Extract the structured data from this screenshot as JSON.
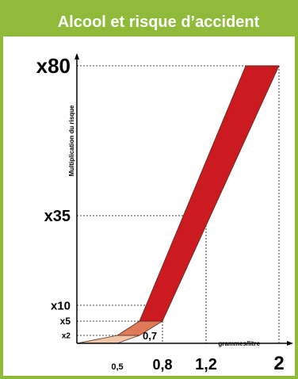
{
  "title": "Alcool et risque d’accident",
  "colors": {
    "frame": "#8fba3a",
    "title_bg": "#8fba3a",
    "title_text": "#ffffff",
    "band_high": "#cc1b20",
    "band_mid": "#e0785a",
    "band_low": "#f1c6a8",
    "band_stroke": "#5a2a1e",
    "text": "#000000",
    "guide": "#000000"
  },
  "chart_data": {
    "type": "area",
    "title": "Alcool et risque d’accident",
    "xlabel": "grammes/litre",
    "ylabel": "Multiplication du risque",
    "x_ticks": [
      {
        "value": 0.5,
        "label": "0,5"
      },
      {
        "value": 0.8,
        "label": "0,8"
      },
      {
        "value": 1.2,
        "label": "1,2"
      },
      {
        "value": 2,
        "label": "2"
      }
    ],
    "extra_x_label": {
      "value": 0.7,
      "label": "0,7"
    },
    "y_ticks": [
      {
        "value": 2,
        "label": "x2"
      },
      {
        "value": 5,
        "label": "x5"
      },
      {
        "value": 10,
        "label": "x10"
      },
      {
        "value": 35,
        "label": "x35"
      },
      {
        "value": 80,
        "label": "x80"
      }
    ],
    "series": [
      {
        "points": [
          [
            0.5,
            2
          ],
          [
            0.8,
            10
          ],
          [
            1.2,
            35
          ],
          [
            2,
            80
          ]
        ]
      }
    ],
    "band_segments": [
      {
        "range": "low",
        "x_start": [
          0,
          0.5
        ],
        "x_end": [
          0.5,
          0.7
        ],
        "y": [
          0,
          2
        ]
      },
      {
        "range": "mid",
        "x_start": [
          0.5,
          0.7
        ],
        "x_end": [
          0.7,
          0.8
        ],
        "y": [
          2,
          5
        ]
      },
      {
        "range": "high",
        "x_start": [
          0.7,
          0.8
        ],
        "x_end": [
          1.8,
          2
        ],
        "y": [
          5,
          80
        ]
      }
    ]
  }
}
